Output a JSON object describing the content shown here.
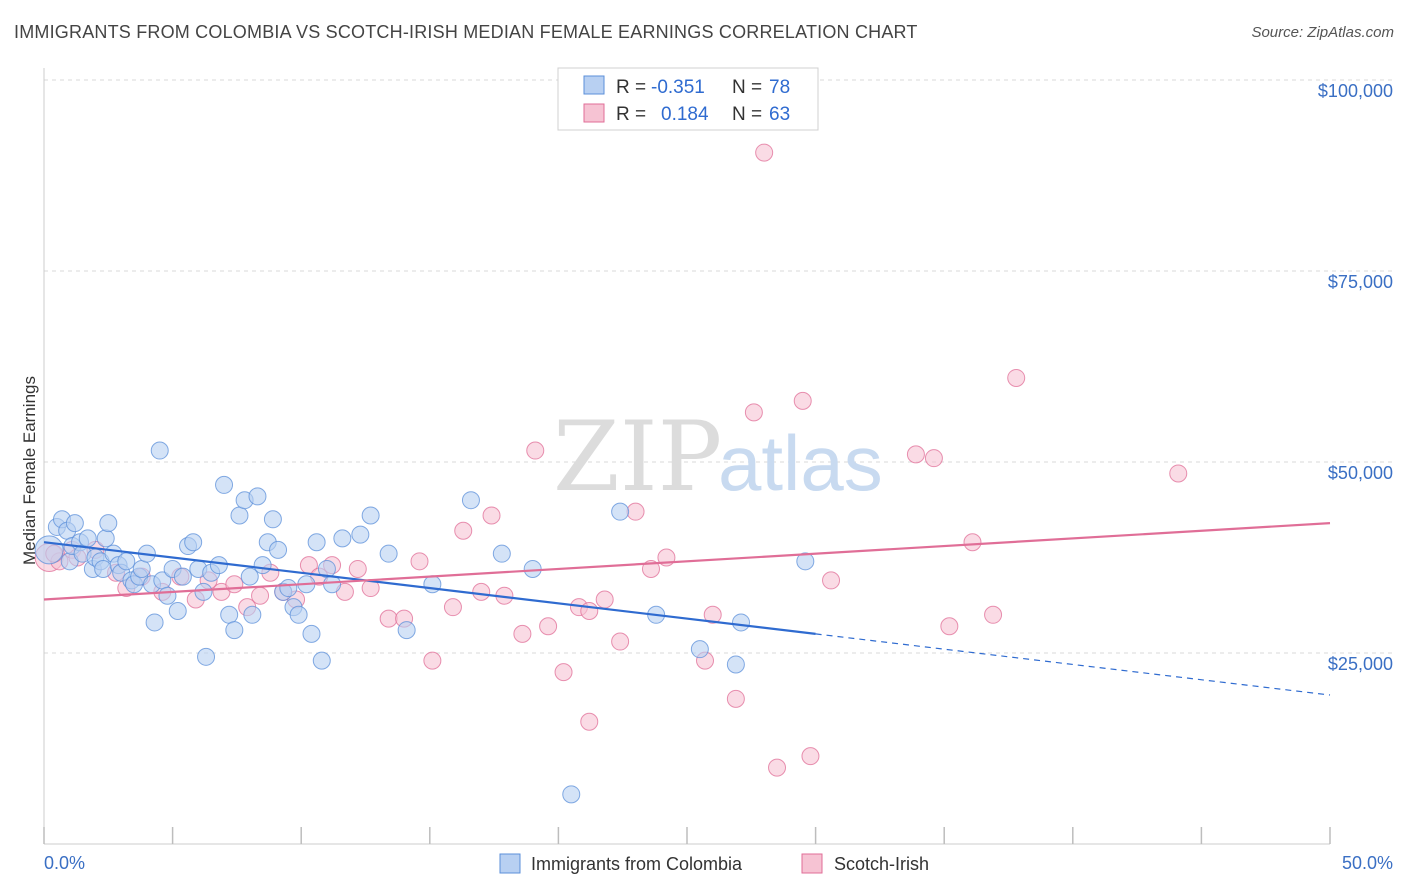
{
  "title": "IMMIGRANTS FROM COLOMBIA VS SCOTCH-IRISH MEDIAN FEMALE EARNINGS CORRELATION CHART",
  "source": "Source: ZipAtlas.com",
  "watermark": {
    "zip": "ZIP",
    "atlas": "atlas"
  },
  "colors": {
    "blue": "#5b8fd9",
    "blue_fill": "#b8d0f2",
    "blue_line": "#2f6bd0",
    "pink": "#e06e97",
    "pink_fill": "#f6c3d3",
    "pink_line": "#e06e97",
    "grid": "#d8d8d8",
    "tick_label": "#3a6fc4"
  },
  "legend": {
    "rows": [
      {
        "r_label": "R =",
        "r_value": "-0.351",
        "n_label": "N =",
        "n_value": "78"
      },
      {
        "r_label": "R =",
        "r_value": "0.184",
        "n_label": "N =",
        "n_value": "63"
      }
    ]
  },
  "chart_data": {
    "type": "scatter",
    "title": "IMMIGRANTS FROM COLOMBIA VS SCOTCH-IRISH MEDIAN FEMALE EARNINGS CORRELATION CHART",
    "xlabel": "",
    "ylabel": "Median Female Earnings",
    "xlim": [
      0,
      50
    ],
    "ylim": [
      0,
      105000
    ],
    "x_tick_labels": [
      "0.0%",
      "50.0%"
    ],
    "y_ticks": [
      25000,
      50000,
      75000,
      100000
    ],
    "y_tick_labels": [
      "$25,000",
      "$50,000",
      "$75,000",
      "$100,000"
    ],
    "grid": true,
    "legend_position": "top-center",
    "series": [
      {
        "name": "Immigrants from Colombia",
        "R": -0.351,
        "N": 78,
        "trend": {
          "x_solid": [
            0,
            30
          ],
          "y_solid": [
            39500,
            27500
          ],
          "x_dash": [
            30,
            50
          ],
          "y_dash": [
            27500,
            19500
          ]
        },
        "points": [
          [
            0.2,
            38500
          ],
          [
            0.5,
            41500
          ],
          [
            0.7,
            42500
          ],
          [
            0.9,
            41000
          ],
          [
            1.0,
            37000
          ],
          [
            1.1,
            39000
          ],
          [
            1.2,
            42000
          ],
          [
            1.4,
            39500
          ],
          [
            1.5,
            38000
          ],
          [
            1.7,
            40000
          ],
          [
            1.9,
            36000
          ],
          [
            2.0,
            37500
          ],
          [
            2.2,
            37000
          ],
          [
            2.3,
            36000
          ],
          [
            2.4,
            40000
          ],
          [
            2.5,
            42000
          ],
          [
            2.7,
            38000
          ],
          [
            2.9,
            36500
          ],
          [
            3.0,
            35500
          ],
          [
            3.2,
            37000
          ],
          [
            3.4,
            34500
          ],
          [
            3.5,
            34000
          ],
          [
            3.7,
            35000
          ],
          [
            3.8,
            36000
          ],
          [
            4.0,
            38000
          ],
          [
            4.2,
            34000
          ],
          [
            4.3,
            29000
          ],
          [
            4.6,
            34500
          ],
          [
            4.8,
            32500
          ],
          [
            5.0,
            36000
          ],
          [
            5.2,
            30500
          ],
          [
            5.4,
            35000
          ],
          [
            5.6,
            39000
          ],
          [
            5.8,
            39500
          ],
          [
            6.0,
            36000
          ],
          [
            6.2,
            33000
          ],
          [
            6.3,
            24500
          ],
          [
            6.5,
            35500
          ],
          [
            6.8,
            36500
          ],
          [
            7.0,
            47000
          ],
          [
            7.2,
            30000
          ],
          [
            7.4,
            28000
          ],
          [
            7.6,
            43000
          ],
          [
            7.8,
            45000
          ],
          [
            8.0,
            35000
          ],
          [
            8.1,
            30000
          ],
          [
            8.3,
            45500
          ],
          [
            8.5,
            36500
          ],
          [
            8.7,
            39500
          ],
          [
            8.9,
            42500
          ],
          [
            9.1,
            38500
          ],
          [
            9.3,
            33000
          ],
          [
            9.5,
            33500
          ],
          [
            9.7,
            31000
          ],
          [
            9.9,
            30000
          ],
          [
            10.2,
            34000
          ],
          [
            10.4,
            27500
          ],
          [
            10.6,
            39500
          ],
          [
            10.8,
            24000
          ],
          [
            11.0,
            36000
          ],
          [
            11.2,
            34000
          ],
          [
            11.6,
            40000
          ],
          [
            12.3,
            40500
          ],
          [
            12.7,
            43000
          ],
          [
            13.4,
            38000
          ],
          [
            14.1,
            28000
          ],
          [
            15.1,
            34000
          ],
          [
            16.6,
            45000
          ],
          [
            17.8,
            38000
          ],
          [
            19.0,
            36000
          ],
          [
            20.5,
            6500
          ],
          [
            22.4,
            43500
          ],
          [
            23.8,
            30000
          ],
          [
            25.5,
            25500
          ],
          [
            27.1,
            29000
          ],
          [
            26.9,
            23500
          ],
          [
            29.6,
            37000
          ],
          [
            4.5,
            51500
          ]
        ]
      },
      {
        "name": "Scotch-Irish",
        "R": 0.184,
        "N": 63,
        "trend": {
          "x_solid": [
            0,
            50
          ],
          "y_solid": [
            32000,
            42000
          ]
        },
        "points": [
          [
            0.2,
            37500
          ],
          [
            0.6,
            37000
          ],
          [
            1.1,
            38500
          ],
          [
            1.3,
            37500
          ],
          [
            2.0,
            38500
          ],
          [
            2.8,
            35500
          ],
          [
            3.2,
            33500
          ],
          [
            3.8,
            35000
          ],
          [
            4.6,
            33000
          ],
          [
            5.3,
            35000
          ],
          [
            5.9,
            32000
          ],
          [
            6.4,
            34500
          ],
          [
            6.9,
            33000
          ],
          [
            7.4,
            34000
          ],
          [
            7.9,
            31000
          ],
          [
            8.4,
            32500
          ],
          [
            8.8,
            35500
          ],
          [
            9.3,
            33000
          ],
          [
            9.8,
            32000
          ],
          [
            10.3,
            36500
          ],
          [
            10.7,
            35000
          ],
          [
            11.2,
            36500
          ],
          [
            11.7,
            33000
          ],
          [
            12.2,
            36000
          ],
          [
            12.7,
            33500
          ],
          [
            13.4,
            29500
          ],
          [
            14.0,
            29500
          ],
          [
            14.6,
            37000
          ],
          [
            15.1,
            24000
          ],
          [
            15.9,
            31000
          ],
          [
            16.3,
            41000
          ],
          [
            17.0,
            33000
          ],
          [
            17.4,
            43000
          ],
          [
            17.9,
            32500
          ],
          [
            18.6,
            27500
          ],
          [
            19.1,
            51500
          ],
          [
            19.6,
            28500
          ],
          [
            20.2,
            22500
          ],
          [
            20.8,
            31000
          ],
          [
            21.2,
            16000
          ],
          [
            21.8,
            32000
          ],
          [
            22.4,
            26500
          ],
          [
            23.0,
            43500
          ],
          [
            23.6,
            36000
          ],
          [
            24.2,
            37500
          ],
          [
            25.7,
            24000
          ],
          [
            26.0,
            30000
          ],
          [
            26.9,
            19000
          ],
          [
            27.6,
            56500
          ],
          [
            28.5,
            10000
          ],
          [
            28.0,
            90500
          ],
          [
            29.5,
            58000
          ],
          [
            29.8,
            11500
          ],
          [
            30.6,
            34500
          ],
          [
            33.9,
            51000
          ],
          [
            34.6,
            50500
          ],
          [
            35.2,
            28500
          ],
          [
            36.1,
            39500
          ],
          [
            36.9,
            30000
          ],
          [
            37.8,
            61000
          ],
          [
            44.1,
            48500
          ],
          [
            0.4,
            38000
          ],
          [
            21.2,
            30500
          ]
        ]
      }
    ]
  },
  "bottom_legend": [
    "Immigrants from Colombia",
    "Scotch-Irish"
  ]
}
